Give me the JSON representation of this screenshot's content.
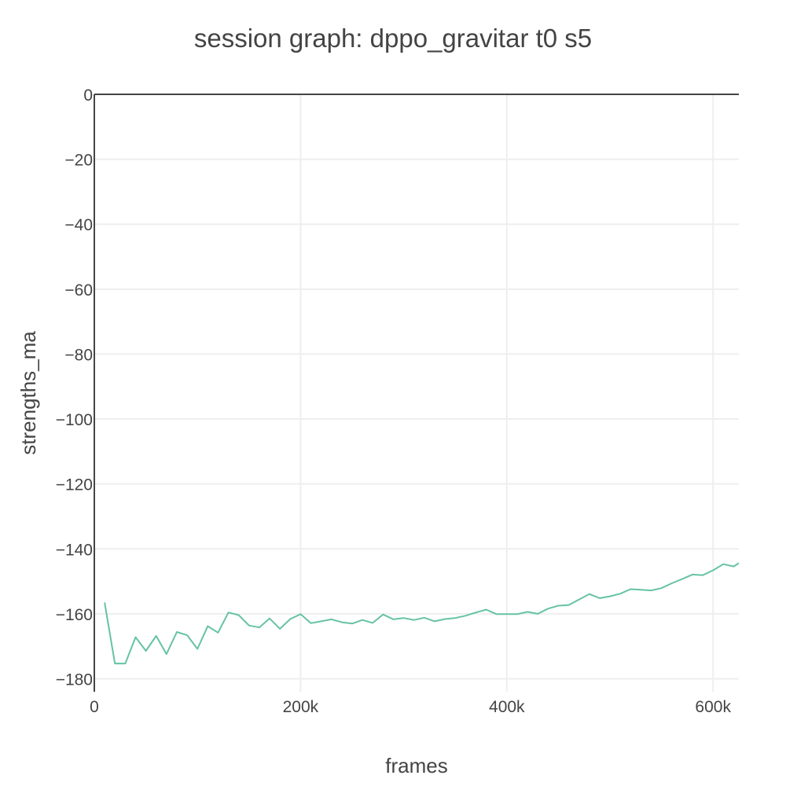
{
  "chart_data": {
    "type": "line",
    "title": "session graph: dppo_gravitar t0 s5",
    "xlabel": "frames",
    "ylabel": "strengths_ma",
    "xlim": [
      0,
      625000
    ],
    "ylim": [
      -184,
      0
    ],
    "x_ticks": [
      0,
      200000,
      400000,
      600000
    ],
    "x_tick_labels": [
      "0",
      "200k",
      "400k",
      "600k"
    ],
    "y_ticks": [
      0,
      -20,
      -40,
      -60,
      -80,
      -100,
      -120,
      -140,
      -160,
      -180
    ],
    "y_tick_labels": [
      "0",
      "−20",
      "−40",
      "−60",
      "−80",
      "−100",
      "−120",
      "−140",
      "−160",
      "−180"
    ],
    "grid": true,
    "series_color": "#66c2a5",
    "series": [
      {
        "x": [
          10000,
          20000,
          30000,
          40000,
          50000,
          60000,
          70000,
          80000,
          90000,
          100000,
          110000,
          120000,
          130000,
          140000,
          150000,
          160000,
          170000,
          180000,
          190000,
          200000,
          210000,
          220000,
          230000,
          240000,
          250000,
          260000,
          270000,
          280000,
          290000,
          300000,
          310000,
          320000,
          330000,
          340000,
          350000,
          360000,
          370000,
          380000,
          390000,
          400000,
          410000,
          420000,
          430000,
          440000,
          450000,
          460000,
          470000,
          480000,
          490000,
          500000,
          510000,
          520000,
          530000,
          540000,
          550000,
          560000,
          570000,
          580000,
          590000,
          600000,
          610000,
          620000,
          625000
        ],
        "y": [
          -156.5,
          -175.3,
          -175.3,
          -167.2,
          -171.4,
          -166.8,
          -172.4,
          -165.6,
          -166.6,
          -170.8,
          -163.8,
          -165.8,
          -159.6,
          -160.4,
          -163.6,
          -164.2,
          -161.4,
          -164.6,
          -161.6,
          -160.1,
          -162.9,
          -162.3,
          -161.7,
          -162.6,
          -163.0,
          -161.9,
          -162.8,
          -160.2,
          -161.7,
          -161.3,
          -161.9,
          -161.2,
          -162.3,
          -161.6,
          -161.3,
          -160.6,
          -159.6,
          -158.7,
          -160.1,
          -160.1,
          -160.1,
          -159.4,
          -160.0,
          -158.4,
          -157.5,
          -157.3,
          -155.6,
          -153.9,
          -155.2,
          -154.6,
          -153.8,
          -152.4,
          -152.6,
          -152.8,
          -152.1,
          -150.6,
          -149.3,
          -147.9,
          -148.1,
          -146.6,
          -144.7,
          -145.4,
          -144.4
        ]
      }
    ]
  }
}
